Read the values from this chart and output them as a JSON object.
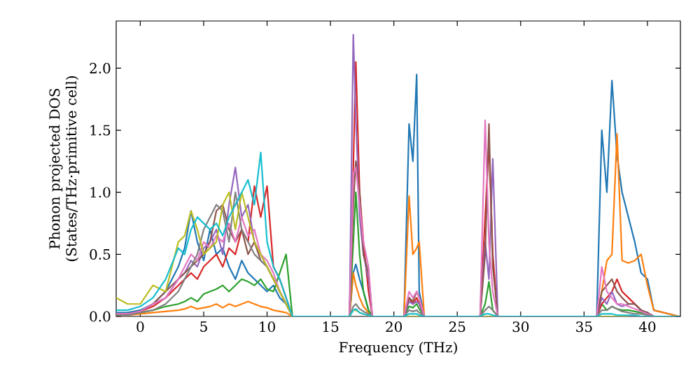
{
  "chart_data": {
    "type": "line",
    "xlabel": "Frequency (THz)",
    "ylabel": "Phonon projected DOS (States/THz·primitive cell)",
    "xlim": [
      -1.9,
      42.6
    ],
    "ylim": [
      0,
      2.38
    ],
    "xticks": [
      0,
      5,
      10,
      15,
      20,
      25,
      30,
      35,
      40
    ],
    "yticks": [
      {
        "value": 0,
        "label": "0.0"
      },
      {
        "value": 0.5,
        "label": "0.5"
      },
      {
        "value": 1,
        "label": "1.0"
      },
      {
        "value": 1.5,
        "label": "1.5"
      },
      {
        "value": 2,
        "label": "2.0"
      }
    ],
    "grid": false,
    "marker": "none",
    "line_style": "solid",
    "x": [
      -1.9,
      -1,
      0,
      1,
      2,
      3,
      3.5,
      4,
      4.5,
      5,
      5.5,
      6,
      6.5,
      7,
      7.5,
      8,
      8.5,
      9,
      9.5,
      10,
      10.5,
      11,
      11.5,
      12,
      16.5,
      16.8,
      17,
      17.3,
      17.6,
      18,
      18.3,
      20.8,
      21.2,
      21.5,
      21.8,
      22,
      22.4,
      26.8,
      27.2,
      27.5,
      27.8,
      28.2,
      36,
      36.4,
      36.8,
      37.2,
      37.6,
      38,
      38.5,
      39,
      39.5,
      40,
      40.5,
      42.5
    ],
    "series": [
      {
        "color": "#1f77b4",
        "values": [
          0.03,
          0.03,
          0.05,
          0.1,
          0.2,
          0.4,
          0.55,
          0.85,
          0.6,
          0.45,
          0.7,
          0.5,
          0.55,
          0.4,
          0.3,
          0.45,
          0.35,
          0.3,
          0.25,
          0.2,
          0.25,
          0.15,
          0.1,
          0,
          0,
          0.35,
          0.42,
          0.3,
          0.2,
          0.05,
          0,
          0,
          1.55,
          1.25,
          1.95,
          0.2,
          0,
          0,
          0,
          0,
          0,
          0,
          0,
          1.5,
          1.0,
          1.9,
          1.3,
          1.0,
          0.8,
          0.6,
          0.35,
          0.3,
          0.05,
          0
        ]
      },
      {
        "color": "#ff7f0e",
        "values": [
          0.01,
          0.01,
          0.02,
          0.03,
          0.04,
          0.05,
          0.06,
          0.08,
          0.06,
          0.07,
          0.08,
          0.1,
          0.07,
          0.1,
          0.08,
          0.1,
          0.12,
          0.1,
          0.08,
          0.07,
          0.05,
          0.04,
          0.03,
          0,
          0,
          0.35,
          0.25,
          0.15,
          0.08,
          0.03,
          0,
          0,
          0.97,
          0.5,
          0.55,
          0.6,
          0,
          0,
          0,
          0,
          0,
          0,
          0,
          0.2,
          0.45,
          0.5,
          1.47,
          0.45,
          0.43,
          0.45,
          0.5,
          0.25,
          0.05,
          0
        ]
      },
      {
        "color": "#2ca02c",
        "values": [
          null,
          null,
          0.03,
          0.05,
          0.08,
          0.1,
          0.12,
          0.15,
          0.12,
          0.18,
          0.2,
          0.22,
          0.25,
          0.2,
          0.25,
          0.3,
          0.28,
          0.25,
          0.3,
          0.22,
          0.2,
          0.35,
          0.5,
          0,
          0,
          0.6,
          1.0,
          0.5,
          0.2,
          0.05,
          0,
          0,
          0.08,
          0.07,
          0.1,
          0.06,
          0,
          0,
          0.1,
          0.28,
          0.05,
          0,
          0,
          0.1,
          0.05,
          0.08,
          0.06,
          0.05,
          0.05,
          0.04,
          0.03,
          0.02,
          0,
          0
        ]
      },
      {
        "color": "#d62728",
        "values": [
          0.02,
          0.02,
          0.04,
          0.08,
          0.15,
          0.25,
          0.3,
          0.35,
          0.3,
          0.4,
          0.45,
          0.5,
          0.4,
          0.55,
          0.5,
          0.7,
          0.6,
          1.05,
          0.8,
          1.05,
          0.4,
          0.3,
          0.15,
          0,
          0,
          1.2,
          2.05,
          1.0,
          0.6,
          0.2,
          0,
          0,
          0.15,
          0.1,
          0.15,
          0.1,
          0,
          0,
          0.8,
          1.4,
          0.5,
          0,
          0,
          0.1,
          0.15,
          0.2,
          0.3,
          0.2,
          0.15,
          0.1,
          0.05,
          null,
          null,
          null
        ]
      },
      {
        "color": "#9467bd",
        "values": [
          0.02,
          0.02,
          0.04,
          0.1,
          0.15,
          0.3,
          0.35,
          0.45,
          0.4,
          0.55,
          0.6,
          0.7,
          0.5,
          0.9,
          1.2,
          0.8,
          0.9,
          0.6,
          0.5,
          0.4,
          0.3,
          0.2,
          0.1,
          0,
          0,
          2.27,
          1.6,
          0.8,
          0.5,
          0.3,
          0,
          0,
          0.12,
          0.1,
          0.12,
          0.1,
          0,
          0,
          0.6,
          0.3,
          1.27,
          0,
          0,
          0.15,
          0.1,
          0.2,
          0.1,
          0.08,
          0.1,
          0.1,
          0.05,
          0.03,
          0,
          0
        ]
      },
      {
        "color": "#8c564b",
        "values": [
          0.02,
          0.02,
          0.04,
          0.1,
          0.2,
          0.3,
          0.35,
          0.4,
          0.45,
          0.5,
          0.6,
          0.85,
          0.9,
          0.7,
          0.6,
          0.7,
          0.5,
          0.6,
          0.45,
          0.4,
          0.3,
          0.2,
          0.1,
          0,
          0,
          0.9,
          1.25,
          1.0,
          0.5,
          0.35,
          0,
          0,
          0.15,
          0.12,
          0.2,
          0.15,
          0,
          0,
          0.5,
          1.55,
          0.4,
          0,
          0,
          0.2,
          0.25,
          0.3,
          0.2,
          0.15,
          0.1,
          0.1,
          0.05,
          0.03,
          0,
          0
        ]
      },
      {
        "color": "#e377c2",
        "values": [
          0.02,
          0.02,
          0.04,
          0.1,
          0.15,
          0.3,
          0.4,
          0.5,
          0.45,
          0.6,
          0.55,
          0.65,
          0.6,
          0.75,
          0.6,
          0.8,
          0.65,
          0.7,
          0.5,
          0.45,
          0.35,
          0.2,
          0.1,
          0,
          0,
          1.15,
          1.2,
          0.9,
          0.6,
          0.4,
          0,
          0,
          0.2,
          0.15,
          0.2,
          0.15,
          0,
          0,
          1.58,
          0.6,
          0.2,
          0,
          0,
          0.4,
          0.2,
          0.15,
          0.1,
          0.1,
          0.08,
          0.06,
          0.04,
          0.02,
          0,
          0
        ]
      },
      {
        "color": "#7f7f7f",
        "values": [
          0.01,
          0.01,
          0.03,
          0.05,
          0.1,
          0.2,
          0.3,
          0.4,
          0.5,
          0.7,
          0.8,
          0.9,
          0.85,
          0.6,
          1.0,
          0.7,
          0.6,
          0.5,
          0.45,
          0.4,
          0.3,
          0.2,
          0.1,
          0,
          0,
          0.08,
          0.1,
          0.06,
          0.04,
          0.02,
          0,
          0,
          0.05,
          0.04,
          0.05,
          0.03,
          0,
          0,
          0.05,
          0.08,
          0.05,
          0,
          0,
          0.05,
          0.05,
          0.08,
          0.06,
          0.04,
          0.03,
          0.02,
          0.02,
          0.01,
          0,
          0
        ]
      },
      {
        "color": "#bcbd22",
        "values": [
          0.15,
          0.1,
          0.1,
          0.25,
          0.2,
          0.6,
          0.65,
          0.85,
          0.7,
          0.5,
          0.55,
          0.6,
          0.9,
          1.0,
          0.7,
          1.0,
          0.8,
          0.6,
          0.5,
          0.4,
          0.3,
          0.2,
          0.1,
          0,
          0,
          0.05,
          0.05,
          0.03,
          0.02,
          0.01,
          0,
          0,
          0,
          0,
          0,
          0,
          0,
          0,
          0,
          0,
          0,
          0,
          0,
          0,
          0,
          0,
          0,
          0,
          0,
          null,
          null,
          null,
          null,
          null
        ]
      },
      {
        "color": "#17becf",
        "values": [
          0.05,
          0.05,
          0.08,
          0.15,
          0.3,
          0.55,
          0.5,
          0.7,
          0.8,
          0.75,
          0.7,
          0.75,
          0.65,
          0.8,
          0.9,
          1.0,
          1.1,
          0.9,
          1.32,
          0.6,
          0.4,
          0.3,
          0.15,
          0,
          0,
          0.05,
          0.06,
          0.03,
          0.02,
          0.01,
          0,
          0,
          0.02,
          0.02,
          0.02,
          0.01,
          0,
          0,
          0.02,
          0.02,
          0.01,
          0,
          0,
          0.02,
          0.02,
          0.02,
          0.01,
          0.01,
          0.01,
          0.01,
          0,
          0,
          0,
          0
        ]
      }
    ]
  }
}
